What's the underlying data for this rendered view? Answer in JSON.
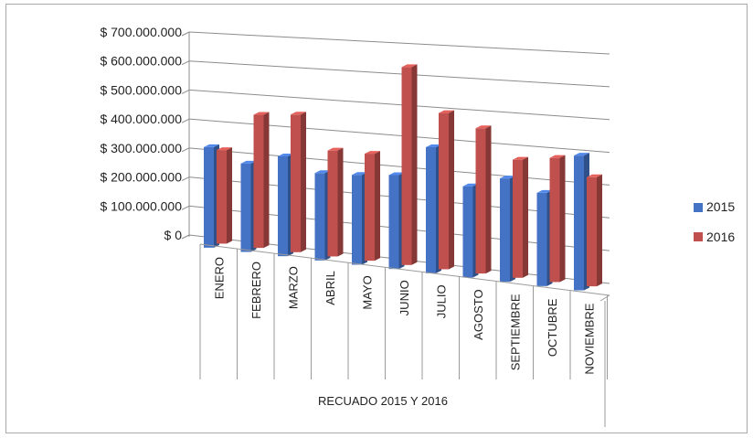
{
  "chart_data": {
    "type": "bar",
    "style": "3d-clustered-column",
    "categories": [
      "ENERO",
      "FEBRERO",
      "MARZO",
      "ABRIL",
      "MAYO",
      "JUNIO",
      "JULIO",
      "AGOSTO",
      "SEPTIEMBRE",
      "OCTUBRE",
      "NOVIEMBRE"
    ],
    "series": [
      {
        "name": "2015",
        "color": "#4472c4",
        "values": [
          345000000,
          300000000,
          335000000,
          290000000,
          295000000,
          305000000,
          405000000,
          290000000,
          325000000,
          290000000,
          415000000
        ]
      },
      {
        "name": "2016",
        "color": "#c0504d",
        "values": [
          320000000,
          450000000,
          460000000,
          350000000,
          350000000,
          640000000,
          500000000,
          460000000,
          370000000,
          385000000,
          335000000
        ]
      }
    ],
    "y_ticks": [
      "$ 0",
      "$ 100.000.000",
      "$ 200.000.000",
      "$ 300.000.000",
      "$ 400.000.000",
      "$ 500.000.000",
      "$ 600.000.000",
      "$ 700.000.000"
    ],
    "ylim": [
      0,
      700000000
    ],
    "xlabel": "RECUADO 2015 Y 2016",
    "ylabel": "",
    "title": "",
    "grid": true,
    "legend": "right"
  }
}
